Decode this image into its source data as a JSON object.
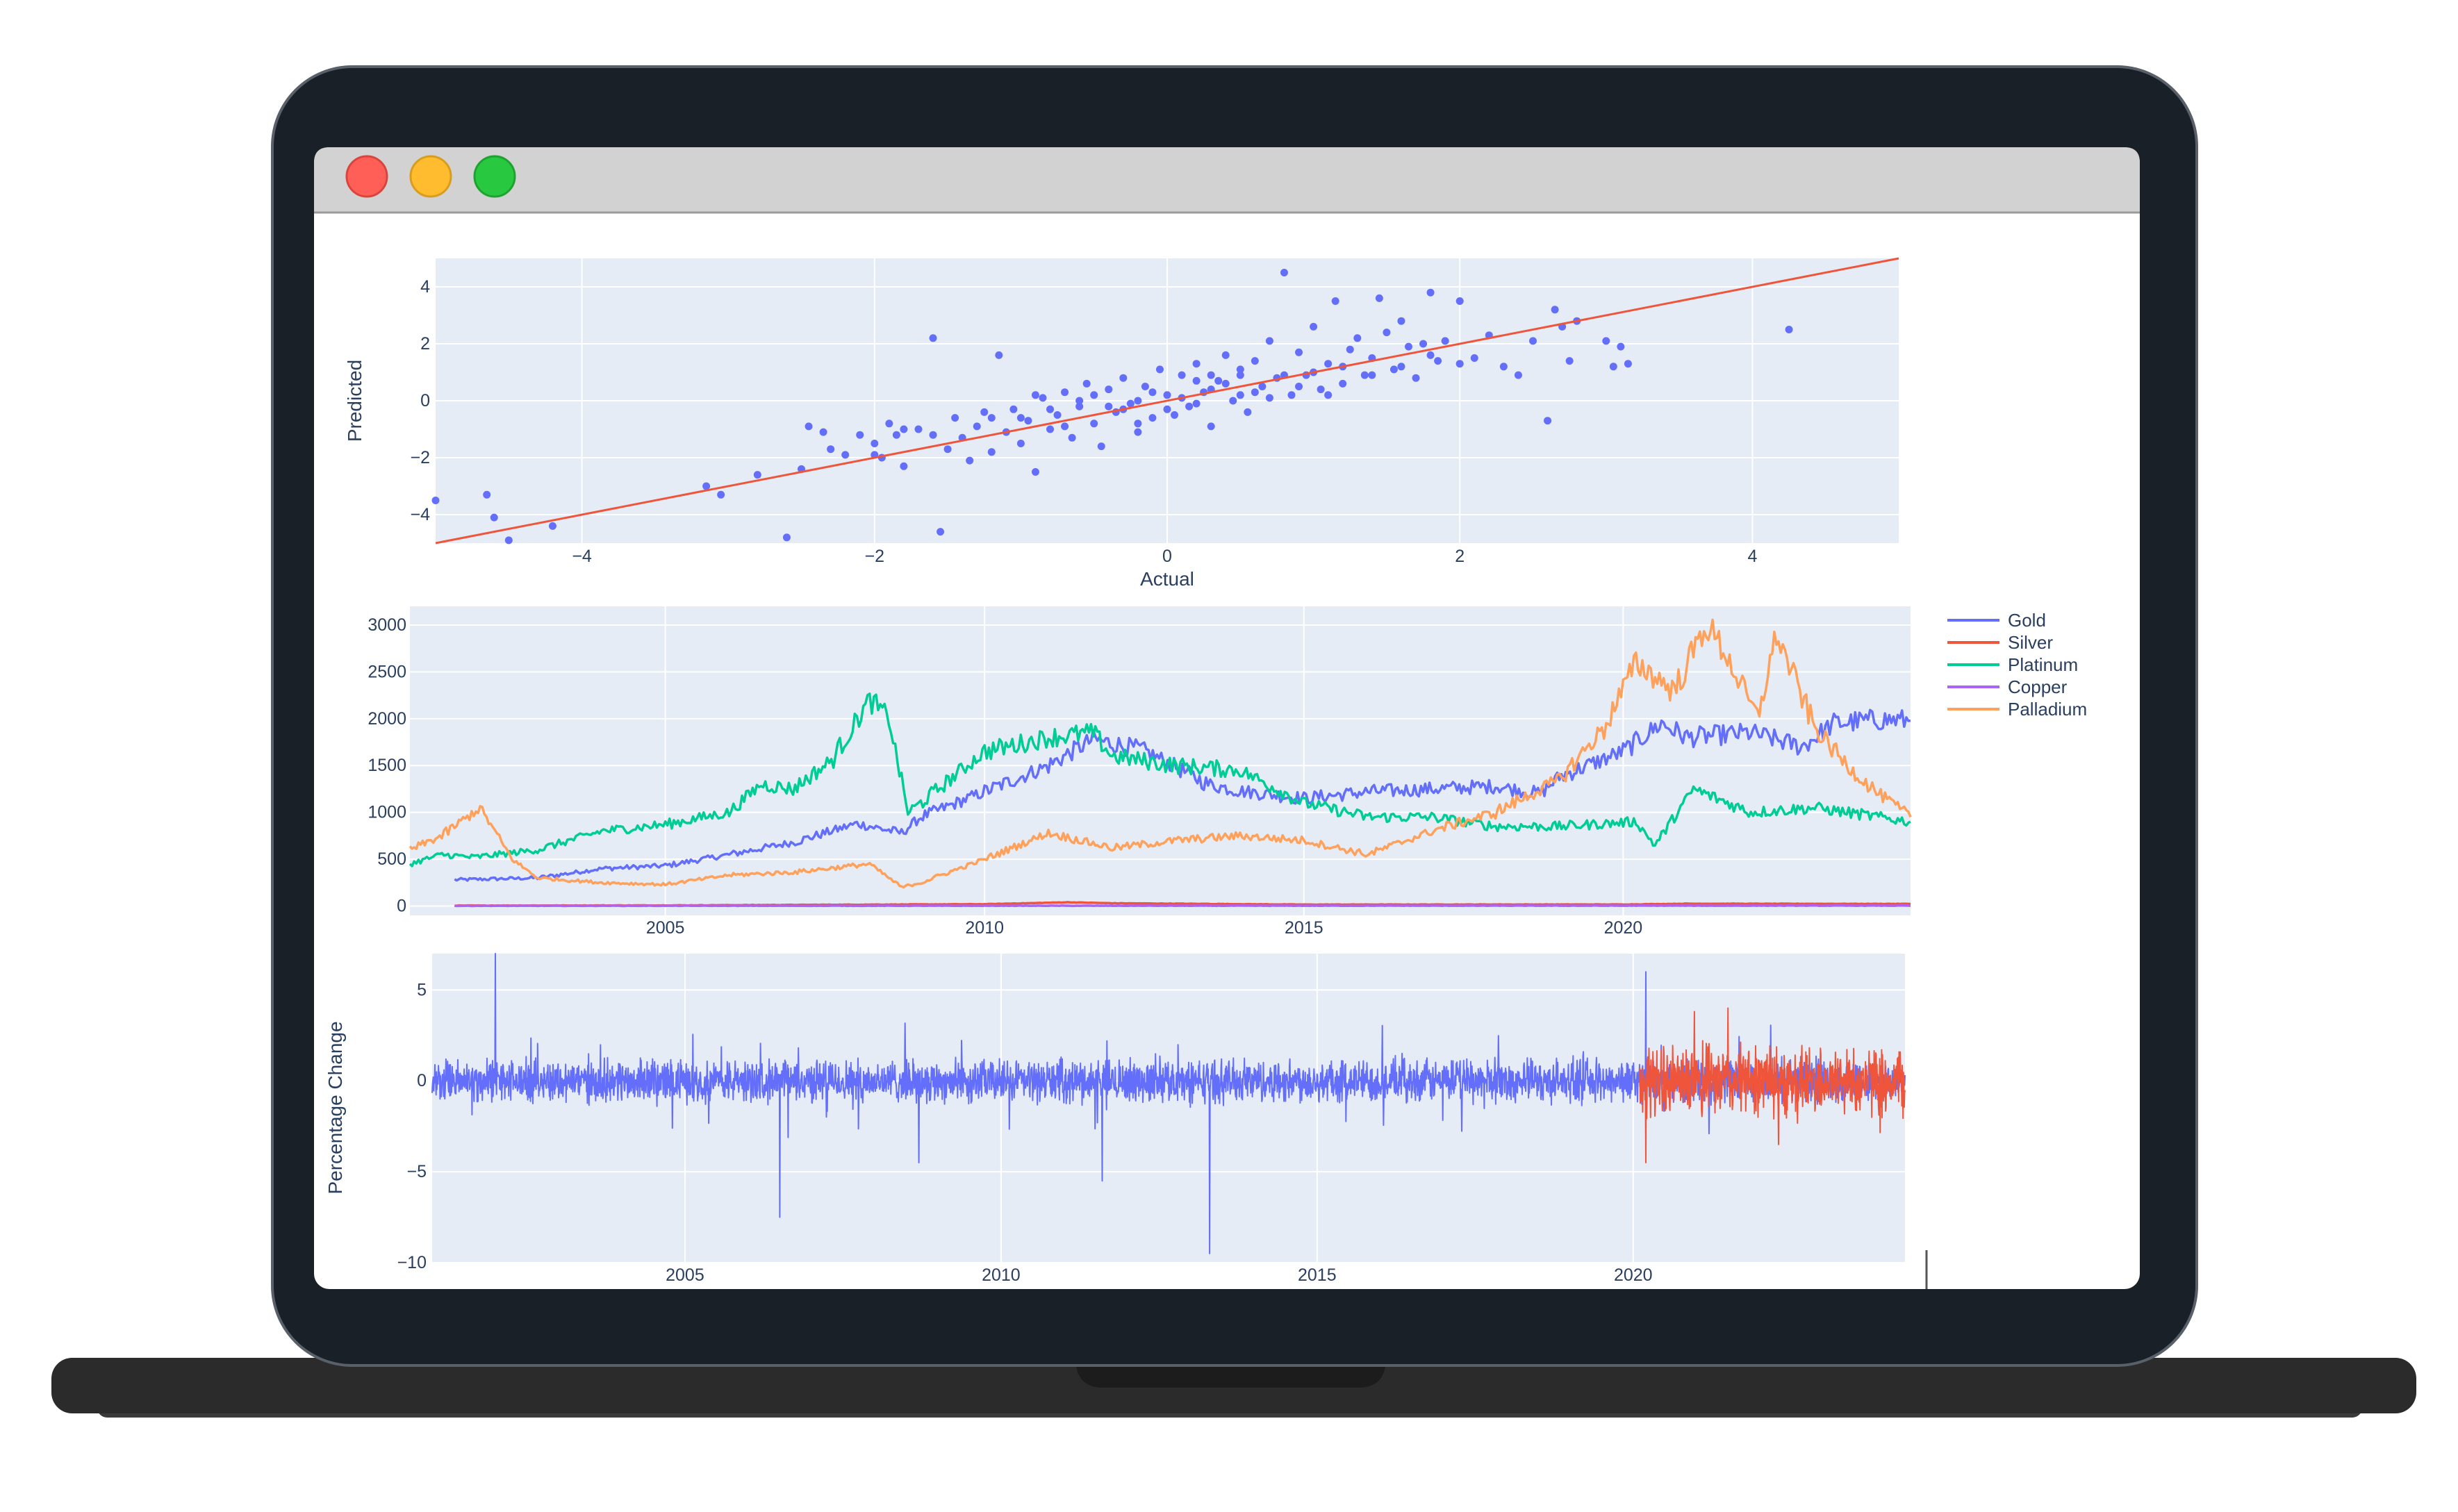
{
  "colors": {
    "plot_bg": "#e5ecf6",
    "grid": "#ffffff",
    "blue": "#636efa",
    "red": "#ef553b",
    "green": "#00cc96",
    "purple": "#ab63fa",
    "orange": "#ffa15a",
    "laptop_frame": "#1a2028",
    "laptop_base": "#2b2b2b",
    "titlebar": "#d2d2d2",
    "btn_close": "#ff5f57",
    "btn_min": "#febc2e",
    "btn_max": "#28c840"
  },
  "window": {
    "buttons": [
      {
        "icon": "close-dot-icon"
      },
      {
        "icon": "minimize-dot-icon"
      },
      {
        "icon": "zoom-dot-icon"
      }
    ]
  },
  "chart_data": [
    {
      "type": "scatter",
      "title": "",
      "xlabel": "Actual",
      "ylabel": "Predicted",
      "xlim": [
        -5,
        5
      ],
      "ylim": [
        -5,
        5
      ],
      "x_ticks": [
        -4,
        -2,
        0,
        2,
        4
      ],
      "y_ticks": [
        -4,
        -2,
        0,
        2,
        4
      ],
      "x_tick_labels": [
        "−4",
        "−2",
        "0",
        "2",
        "4"
      ],
      "y_tick_labels": [
        "−4",
        "−2",
        "0",
        "2",
        "4"
      ],
      "grid": true,
      "reference_line": {
        "x": [
          -5,
          5
        ],
        "y": [
          -5,
          5
        ],
        "color": "#ef553b"
      },
      "points": [
        [
          -5.0,
          -3.5
        ],
        [
          -4.65,
          -3.3
        ],
        [
          -4.6,
          -4.1
        ],
        [
          -4.5,
          -4.9
        ],
        [
          -4.2,
          -4.4
        ],
        [
          -3.15,
          -3.0
        ],
        [
          -3.05,
          -3.3
        ],
        [
          -2.8,
          -2.6
        ],
        [
          -2.6,
          -4.8
        ],
        [
          -2.5,
          -2.4
        ],
        [
          -2.45,
          -0.9
        ],
        [
          -2.35,
          -1.1
        ],
        [
          -2.3,
          -1.7
        ],
        [
          -2.2,
          -1.9
        ],
        [
          -2.1,
          -1.2
        ],
        [
          -2.0,
          -1.5
        ],
        [
          -1.95,
          -2.0
        ],
        [
          -1.9,
          -0.8
        ],
        [
          -1.85,
          -1.2
        ],
        [
          -1.8,
          -2.3
        ],
        [
          -1.7,
          -1.0
        ],
        [
          -1.6,
          2.2
        ],
        [
          -1.55,
          -4.6
        ],
        [
          -1.5,
          -1.7
        ],
        [
          -1.45,
          -0.6
        ],
        [
          -1.4,
          -1.3
        ],
        [
          -1.35,
          -2.1
        ],
        [
          -1.3,
          -0.9
        ],
        [
          -1.25,
          -0.4
        ],
        [
          -1.2,
          -1.8
        ],
        [
          -1.15,
          1.6
        ],
        [
          -1.1,
          -1.1
        ],
        [
          -1.05,
          -0.3
        ],
        [
          -1.0,
          -1.5
        ],
        [
          -0.95,
          -0.7
        ],
        [
          -0.9,
          -2.5
        ],
        [
          -0.85,
          0.1
        ],
        [
          -0.8,
          -1.0
        ],
        [
          -0.75,
          -0.5
        ],
        [
          -0.7,
          0.3
        ],
        [
          -0.65,
          -1.3
        ],
        [
          -0.6,
          -0.2
        ],
        [
          -0.55,
          0.6
        ],
        [
          -0.5,
          -0.8
        ],
        [
          -0.45,
          -1.6
        ],
        [
          -0.4,
          0.4
        ],
        [
          -0.35,
          -0.4
        ],
        [
          -0.3,
          0.8
        ],
        [
          -0.25,
          -0.1
        ],
        [
          -0.2,
          -1.1
        ],
        [
          -0.15,
          0.5
        ],
        [
          -0.1,
          -0.6
        ],
        [
          -0.05,
          1.1
        ],
        [
          0.0,
          0.2
        ],
        [
          0.05,
          -0.5
        ],
        [
          0.1,
          0.9
        ],
        [
          0.15,
          -0.2
        ],
        [
          0.2,
          1.3
        ],
        [
          0.25,
          0.3
        ],
        [
          0.3,
          -0.9
        ],
        [
          0.35,
          0.7
        ],
        [
          0.4,
          1.6
        ],
        [
          0.45,
          0.0
        ],
        [
          0.5,
          0.9
        ],
        [
          0.55,
          -0.4
        ],
        [
          0.6,
          1.4
        ],
        [
          0.65,
          0.5
        ],
        [
          0.7,
          2.1
        ],
        [
          0.75,
          0.8
        ],
        [
          0.8,
          4.5
        ],
        [
          0.85,
          0.2
        ],
        [
          0.9,
          1.7
        ],
        [
          0.95,
          0.9
        ],
        [
          1.0,
          2.6
        ],
        [
          1.05,
          0.4
        ],
        [
          1.1,
          1.3
        ],
        [
          1.15,
          3.5
        ],
        [
          1.2,
          0.6
        ],
        [
          1.25,
          1.8
        ],
        [
          1.3,
          2.2
        ],
        [
          1.35,
          0.9
        ],
        [
          1.4,
          1.5
        ],
        [
          1.45,
          3.6
        ],
        [
          1.5,
          2.4
        ],
        [
          1.55,
          1.1
        ],
        [
          1.6,
          2.8
        ],
        [
          1.65,
          1.9
        ],
        [
          1.7,
          0.8
        ],
        [
          1.75,
          2.0
        ],
        [
          1.8,
          3.8
        ],
        [
          1.85,
          1.4
        ],
        [
          1.9,
          2.1
        ],
        [
          2.0,
          3.5
        ],
        [
          2.1,
          1.5
        ],
        [
          2.2,
          2.3
        ],
        [
          2.3,
          1.2
        ],
        [
          2.4,
          0.9
        ],
        [
          2.5,
          2.1
        ],
        [
          2.6,
          -0.7
        ],
        [
          2.65,
          3.2
        ],
        [
          2.7,
          2.6
        ],
        [
          2.75,
          1.4
        ],
        [
          2.8,
          2.8
        ],
        [
          3.0,
          2.1
        ],
        [
          3.05,
          1.2
        ],
        [
          3.1,
          1.9
        ],
        [
          3.15,
          1.3
        ],
        [
          4.25,
          2.5
        ],
        [
          -0.6,
          0.0
        ],
        [
          -0.3,
          -0.3
        ],
        [
          0.1,
          0.1
        ],
        [
          0.3,
          0.4
        ],
        [
          0.5,
          0.2
        ],
        [
          -0.1,
          0.3
        ],
        [
          0.2,
          -0.1
        ],
        [
          -0.4,
          -0.2
        ],
        [
          0.4,
          0.6
        ],
        [
          0.6,
          0.3
        ],
        [
          -0.2,
          0.0
        ],
        [
          0.0,
          -0.3
        ],
        [
          0.8,
          0.9
        ],
        [
          -0.8,
          -0.3
        ],
        [
          1.0,
          1.0
        ],
        [
          -1.0,
          -0.6
        ],
        [
          0.7,
          0.1
        ],
        [
          0.9,
          0.5
        ],
        [
          -0.5,
          0.2
        ],
        [
          0.3,
          0.9
        ],
        [
          1.2,
          1.2
        ],
        [
          -1.2,
          -0.6
        ],
        [
          1.4,
          0.9
        ],
        [
          -0.7,
          -0.9
        ],
        [
          0.5,
          1.1
        ],
        [
          1.6,
          1.2
        ],
        [
          -1.6,
          -1.2
        ],
        [
          -1.8,
          -1.0
        ],
        [
          1.8,
          1.6
        ],
        [
          -2.0,
          -1.9
        ],
        [
          2.0,
          1.3
        ],
        [
          -0.9,
          0.2
        ],
        [
          1.1,
          0.2
        ],
        [
          -0.2,
          -0.8
        ],
        [
          0.2,
          0.7
        ]
      ]
    },
    {
      "type": "line",
      "title": "",
      "xlabel": "",
      "ylabel": "",
      "xlim": [
        2001.0,
        2024.5
      ],
      "ylim": [
        -100,
        3200
      ],
      "x_ticks": [
        2005,
        2010,
        2015,
        2020
      ],
      "x_tick_labels": [
        "2005",
        "2010",
        "2015",
        "2020"
      ],
      "y_ticks": [
        0,
        500,
        1000,
        1500,
        2000,
        2500,
        3000
      ],
      "y_tick_labels": [
        "0",
        "500",
        "1000",
        "1500",
        "2000",
        "2500",
        "3000"
      ],
      "legend_position": "right",
      "series": [
        {
          "name": "Gold",
          "color": "#636efa",
          "x": [
            2001.7,
            2003,
            2004,
            2005,
            2006,
            2007,
            2008,
            2008.7,
            2009,
            2010,
            2011,
            2011.7,
            2012.5,
            2013.5,
            2014,
            2015,
            2016,
            2017,
            2018,
            2018.7,
            2019,
            2020,
            2020.6,
            2021,
            2022,
            2022.8,
            2023.3,
            2024,
            2024.5
          ],
          "y": [
            280,
            300,
            400,
            430,
            550,
            680,
            880,
            780,
            950,
            1220,
            1500,
            1780,
            1660,
            1300,
            1230,
            1150,
            1220,
            1250,
            1280,
            1200,
            1380,
            1650,
            1950,
            1800,
            1850,
            1700,
            1950,
            1990,
            1980
          ]
        },
        {
          "name": "Silver",
          "color": "#ef553b",
          "x": [
            2001.7,
            2005,
            2008,
            2010,
            2011.3,
            2012,
            2015,
            2020,
            2021,
            2024.5
          ],
          "y": [
            5,
            7,
            15,
            20,
            40,
            30,
            16,
            17,
            25,
            23
          ]
        },
        {
          "name": "Platinum",
          "color": "#00cc96",
          "x": [
            2001.0,
            2001.5,
            2002,
            2003,
            2004,
            2005,
            2006,
            2006.5,
            2007,
            2007.6,
            2008.2,
            2008.5,
            2008.8,
            2009,
            2010,
            2011,
            2011.7,
            2012,
            2013,
            2014,
            2015,
            2016,
            2017,
            2018,
            2019,
            2020.2,
            2020.5,
            2021.1,
            2022,
            2023,
            2024,
            2024.5
          ],
          "y": [
            450,
            550,
            520,
            600,
            800,
            870,
            1000,
            1300,
            1250,
            1550,
            2200,
            2000,
            1000,
            1100,
            1650,
            1800,
            1850,
            1600,
            1500,
            1450,
            1100,
            950,
            950,
            850,
            850,
            900,
            650,
            1250,
            1000,
            1050,
            950,
            900
          ]
        },
        {
          "name": "Copper",
          "color": "#ab63fa",
          "x": [
            2001.7,
            2024.5
          ],
          "y": [
            2,
            4
          ]
        },
        {
          "name": "Palladium",
          "color": "#ffa15a",
          "x": [
            2001.0,
            2001.5,
            2002.1,
            2002.6,
            2003,
            2004,
            2005,
            2006,
            2007,
            2008.2,
            2008.7,
            2009,
            2010,
            2011,
            2011.5,
            2012,
            2013,
            2014,
            2015,
            2016,
            2017,
            2018,
            2019,
            2019.7,
            2020.2,
            2020.8,
            2021.3,
            2021.6,
            2022.1,
            2022.4,
            2023,
            2023.5,
            2024,
            2024.5
          ],
          "y": [
            600,
            750,
            1050,
            500,
            300,
            250,
            230,
            330,
            360,
            450,
            200,
            250,
            500,
            780,
            700,
            620,
            700,
            750,
            700,
            550,
            800,
            1000,
            1350,
            1900,
            2600,
            2300,
            3000,
            2700,
            2000,
            2900,
            1900,
            1500,
            1200,
            950
          ]
        }
      ]
    },
    {
      "type": "line",
      "title": "",
      "xlabel": "",
      "ylabel": "Percentage Change",
      "xlim": [
        2001.0,
        2024.3
      ],
      "ylim": [
        -10,
        7
      ],
      "x_ticks": [
        2005,
        2010,
        2015,
        2020
      ],
      "x_tick_labels": [
        "2005",
        "2010",
        "2015",
        "2020"
      ],
      "y_ticks": [
        -10,
        -5,
        0,
        5
      ],
      "y_tick_labels": [
        "−10",
        "−5",
        "0",
        "5"
      ],
      "series": [
        {
          "color": "#636efa",
          "x_range": [
            2001.0,
            2024.3
          ],
          "amplitude": 1.0,
          "spikes": [
            [
              2002.0,
              7.0
            ],
            [
              2006.5,
              -7.5
            ],
            [
              2008.7,
              -4.5
            ],
            [
              2013.3,
              -9.5
            ],
            [
              2011.6,
              -5.5
            ],
            [
              2020.2,
              6.0
            ]
          ]
        },
        {
          "color": "#ef553b",
          "x_range": [
            2020.1,
            2024.3
          ],
          "amplitude": 1.6,
          "spikes": [
            [
              2020.2,
              -4.5
            ],
            [
              2021.5,
              4.0
            ],
            [
              2022.3,
              -3.5
            ]
          ]
        }
      ]
    }
  ]
}
